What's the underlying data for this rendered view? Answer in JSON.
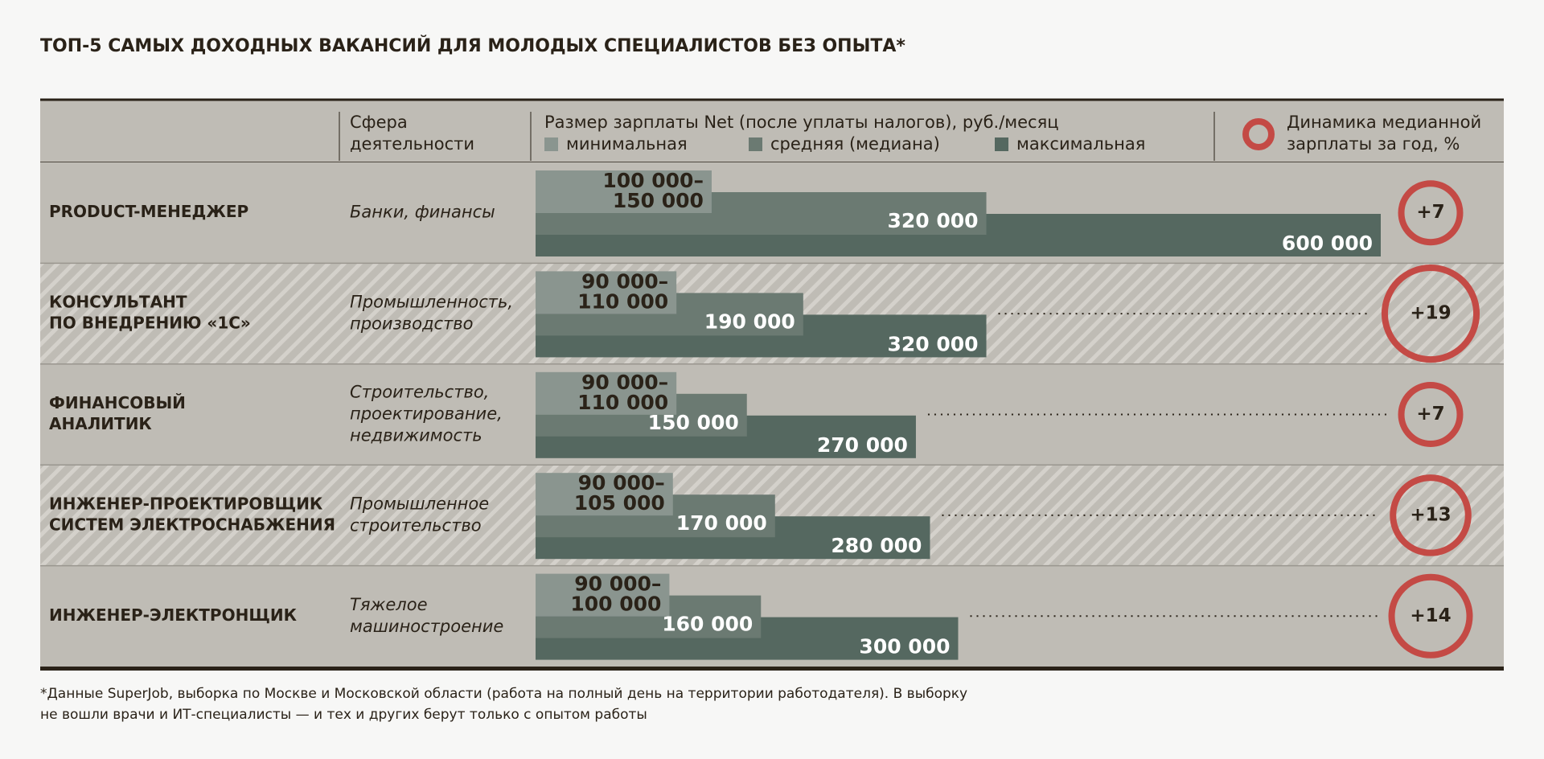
{
  "title": "ТОП-5 САМЫХ ДОХОДНЫХ ВАКАНСИЙ ДЛЯ МОЛОДЫХ СПЕЦИАЛИСТОВ БЕЗ ОПЫТА*",
  "header": {
    "sphere": [
      "Сфера",
      "деятельности"
    ],
    "salary": "Размер зарплаты Net (после уплаты налогов), руб./месяц",
    "legend": {
      "min": "минимальная",
      "median": "средняя (медиана)",
      "max": "максимальная"
    },
    "change": [
      "Динамика медианной",
      "зарплаты за год, %"
    ]
  },
  "colors": {
    "min": "#8a958f",
    "median": "#6b7a72",
    "max": "#556860",
    "change": "#c44a45"
  },
  "xlim": [
    0,
    600000
  ],
  "rows": [
    {
      "job": [
        "PRODUCT-МЕНЕДЖЕР"
      ],
      "sphere": [
        "Банки, финансы"
      ],
      "min": {
        "low": 100000,
        "high": 150000,
        "label": [
          "100 000–",
          "150 000"
        ]
      },
      "median": {
        "value": 320000,
        "label": "320 000"
      },
      "max": {
        "value": 600000,
        "label": "600 000"
      },
      "change": {
        "value": 7,
        "label": "+7"
      }
    },
    {
      "job": [
        "КОНСУЛЬТАНТ",
        "ПО ВНЕДРЕНИЮ «1С»"
      ],
      "sphere": [
        "Промышленность,",
        "производство"
      ],
      "min": {
        "low": 90000,
        "high": 110000,
        "label": [
          "90 000–",
          "110 000"
        ]
      },
      "median": {
        "value": 190000,
        "label": "190 000"
      },
      "max": {
        "value": 320000,
        "label": "320 000"
      },
      "change": {
        "value": 19,
        "label": "+19"
      }
    },
    {
      "job": [
        "ФИНАНСОВЫЙ",
        "АНАЛИТИК"
      ],
      "sphere": [
        "Строительство,",
        "проектирование,",
        "недвижимость"
      ],
      "min": {
        "low": 90000,
        "high": 110000,
        "label": [
          "90 000–",
          "110 000"
        ]
      },
      "median": {
        "value": 150000,
        "label": "150 000"
      },
      "max": {
        "value": 270000,
        "label": "270 000"
      },
      "change": {
        "value": 7,
        "label": "+7"
      }
    },
    {
      "job": [
        "ИНЖЕНЕР-ПРОЕКТИРОВЩИК",
        "СИСТЕМ ЭЛЕКТРОСНАБЖЕНИЯ"
      ],
      "sphere": [
        "Промышленное",
        "строительство"
      ],
      "min": {
        "low": 90000,
        "high": 105000,
        "label": [
          "90 000–",
          "105 000"
        ]
      },
      "median": {
        "value": 170000,
        "label": "170 000"
      },
      "max": {
        "value": 280000,
        "label": "280 000"
      },
      "change": {
        "value": 13,
        "label": "+13"
      }
    },
    {
      "job": [
        "ИНЖЕНЕР-ЭЛЕКТРОНЩИК"
      ],
      "sphere": [
        "Тяжелое",
        "машиностроение"
      ],
      "min": {
        "low": 90000,
        "high": 100000,
        "label": [
          "90 000–",
          "100 000"
        ]
      },
      "median": {
        "value": 160000,
        "label": "160 000"
      },
      "max": {
        "value": 300000,
        "label": "300 000"
      },
      "change": {
        "value": 14,
        "label": "+14"
      }
    }
  ],
  "footnote": [
    "*Данные SuperJob, выборка по Москве и Московской области (работа на полный день на территории работодателя). В выборку",
    "не вошли врачи и ИТ-специалисты — и тех и других берут только с опытом работы"
  ]
}
